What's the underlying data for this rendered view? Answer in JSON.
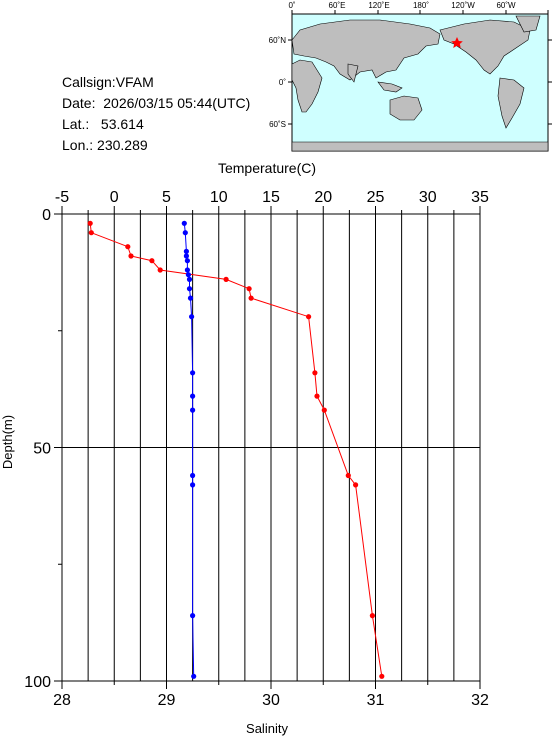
{
  "station": {
    "callsign": "Callsign:VFAM",
    "date": "Date:  2026/03/15 05:44(UTC)",
    "lat_label": "Lat.:",
    "lat": "53.614",
    "lon_label": "Lon.:",
    "lon": "230.289"
  },
  "map": {
    "lon_ticks": [
      "0˚",
      "60˚E",
      "120˚E",
      "180˚",
      "120˚W",
      "60˚W"
    ],
    "lat_ticks": [
      "60˚N",
      "0˚",
      "60˚S"
    ],
    "ocean_color": "#cfffff",
    "land_color": "#bebebe",
    "marker_color": "#ff0000"
  },
  "chart_data": {
    "type": "line",
    "ylabel": "Depth(m)",
    "ylim": [
      0,
      100
    ],
    "y_ticks": [
      0,
      50,
      100
    ],
    "y_inverted": true,
    "grid": true,
    "top_axis": {
      "label": "Temperature(C)",
      "range": [
        -5,
        35
      ],
      "ticks": [
        -5,
        0,
        5,
        10,
        15,
        20,
        25,
        30,
        35
      ]
    },
    "bottom_axis": {
      "label": "Salinity",
      "range": [
        28,
        32
      ],
      "ticks": [
        28,
        29,
        30,
        31,
        32
      ]
    },
    "series": [
      {
        "axis": "top",
        "color": "#ff0000",
        "depth": [
          2,
          4,
          7,
          9,
          10,
          12,
          14,
          16,
          18,
          22,
          34,
          39,
          42,
          56,
          58,
          86,
          99
        ],
        "values": [
          -2.3,
          -2.2,
          1.3,
          1.6,
          3.6,
          4.4,
          10.7,
          12.9,
          13.1,
          18.6,
          19.2,
          19.4,
          20.1,
          22.4,
          23.1,
          24.7,
          25.6
        ]
      },
      {
        "axis": "bottom",
        "color": "#0000ff",
        "depth": [
          2,
          4,
          8,
          9,
          10,
          12,
          13,
          14,
          16,
          18,
          22,
          34,
          39,
          42,
          56,
          58,
          86,
          99
        ],
        "values": [
          29.17,
          29.18,
          29.19,
          29.19,
          29.2,
          29.2,
          29.21,
          29.22,
          29.22,
          29.23,
          29.24,
          29.25,
          29.25,
          29.25,
          29.25,
          29.25,
          29.25,
          29.26
        ]
      }
    ]
  }
}
